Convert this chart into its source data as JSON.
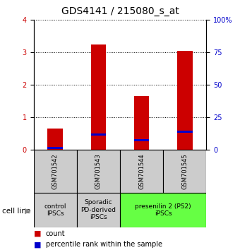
{
  "title": "GDS4141 / 215080_s_at",
  "samples": [
    "GSM701542",
    "GSM701543",
    "GSM701544",
    "GSM701545"
  ],
  "count_values": [
    0.65,
    3.25,
    1.65,
    3.05
  ],
  "percentile_bar_bottom": [
    0.04,
    0.44,
    0.27,
    0.54
  ],
  "percentile_bar_height": [
    0.06,
    0.06,
    0.06,
    0.06
  ],
  "ylim_left": [
    0,
    4
  ],
  "ylim_right": [
    0,
    100
  ],
  "yticks_left": [
    0,
    1,
    2,
    3,
    4
  ],
  "yticks_right": [
    0,
    25,
    50,
    75,
    100
  ],
  "ytick_labels_right": [
    "0",
    "25",
    "50",
    "75",
    "100%"
  ],
  "bar_width": 0.35,
  "red_color": "#cc0000",
  "blue_color": "#0000cc",
  "legend_items": [
    [
      "count",
      "#cc0000"
    ],
    [
      "percentile rank within the sample",
      "#0000cc"
    ]
  ],
  "sample_box_color": "#cccccc",
  "cat_defs": [
    [
      0,
      0,
      "control\nIPSCs",
      "#cccccc"
    ],
    [
      1,
      1,
      "Sporadic\nPD-derived\niPSCs",
      "#cccccc"
    ],
    [
      2,
      3,
      "presenilin 2 (PS2)\niPSCs",
      "#66ff44"
    ]
  ],
  "title_fontsize": 10,
  "tick_fontsize": 7,
  "sample_fontsize": 6,
  "cat_fontsize": 6.5,
  "legend_fontsize": 7
}
